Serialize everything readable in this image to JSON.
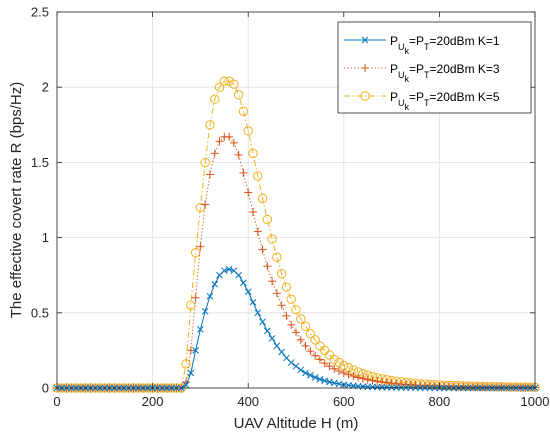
{
  "chart_data": {
    "type": "line",
    "xlabel": "UAV Altitude H (m)",
    "ylabel": "The effective covert rate R (bps/Hz)",
    "xlim": [
      0,
      1000
    ],
    "ylim": [
      0,
      2.5
    ],
    "xticks": [
      0,
      200,
      400,
      600,
      800,
      1000
    ],
    "yticks": [
      0,
      0.5,
      1,
      1.5,
      2,
      2.5
    ],
    "xtick_labels": [
      "0",
      "200",
      "400",
      "600",
      "800",
      "1000"
    ],
    "ytick_labels": [
      "0",
      "0.5",
      "1",
      "1.5",
      "2",
      "2.5"
    ],
    "grid": true,
    "legend_position": "top-right",
    "legend_entries": [
      {
        "p": "P",
        "u": "U",
        "k": "k",
        "eq": "=P",
        "t": "T",
        "rest": "=20dBm K=1"
      },
      {
        "p": "P",
        "u": "U",
        "k": "k",
        "eq": "=P",
        "t": "T",
        "rest": "=20dBm K=3"
      },
      {
        "p": "P",
        "u": "U",
        "k": "k",
        "eq": "=P",
        "t": "T",
        "rest": "=20dBm K=5"
      }
    ],
    "x": [
      0,
      10,
      20,
      30,
      40,
      50,
      60,
      70,
      80,
      90,
      100,
      110,
      120,
      130,
      140,
      150,
      160,
      170,
      180,
      190,
      200,
      210,
      220,
      230,
      240,
      250,
      260,
      270,
      280,
      290,
      300,
      310,
      320,
      330,
      340,
      350,
      360,
      370,
      380,
      390,
      400,
      410,
      420,
      430,
      440,
      450,
      460,
      470,
      480,
      490,
      500,
      510,
      520,
      530,
      540,
      550,
      560,
      570,
      580,
      590,
      600,
      610,
      620,
      630,
      640,
      650,
      660,
      670,
      680,
      690,
      700,
      710,
      720,
      730,
      740,
      750,
      760,
      770,
      780,
      790,
      800,
      810,
      820,
      830,
      840,
      850,
      860,
      870,
      880,
      890,
      900,
      910,
      920,
      930,
      940,
      950,
      960,
      970,
      980,
      990,
      1000
    ],
    "series": [
      {
        "marker": "x",
        "color": "#0072bd",
        "dash": "solid",
        "values": [
          0,
          0,
          0,
          0,
          0,
          0,
          0,
          0,
          0,
          0,
          0,
          0,
          0,
          0,
          0,
          0,
          0,
          0,
          0,
          0,
          0,
          0,
          0,
          0,
          0,
          0,
          0,
          0.02,
          0.1,
          0.25,
          0.39,
          0.51,
          0.61,
          0.69,
          0.75,
          0.78,
          0.79,
          0.78,
          0.75,
          0.7,
          0.64,
          0.57,
          0.5,
          0.44,
          0.38,
          0.33,
          0.28,
          0.24,
          0.2,
          0.17,
          0.145,
          0.12,
          0.1,
          0.085,
          0.07,
          0.058,
          0.048,
          0.04,
          0.033,
          0.027,
          0.022,
          0.018,
          0.015,
          0.012,
          0.01,
          0.008,
          0.007,
          0.006,
          0.005,
          0.004,
          0.003,
          0.003,
          0.002,
          0.002,
          0.002,
          0.001,
          0.001,
          0.001,
          0.001,
          0.001,
          0,
          0,
          0,
          0,
          0,
          0,
          0,
          0,
          0,
          0,
          0,
          0,
          0,
          0,
          0,
          0,
          0,
          0,
          0,
          0,
          0
        ]
      },
      {
        "marker": "+",
        "color": "#d95319",
        "dash": "dotted",
        "values": [
          0,
          0,
          0,
          0,
          0,
          0,
          0,
          0,
          0,
          0,
          0,
          0,
          0,
          0,
          0,
          0,
          0,
          0,
          0,
          0,
          0,
          0,
          0,
          0,
          0,
          0,
          0,
          0.04,
          0.25,
          0.6,
          0.94,
          1.22,
          1.42,
          1.56,
          1.64,
          1.67,
          1.67,
          1.63,
          1.55,
          1.43,
          1.3,
          1.17,
          1.04,
          0.92,
          0.81,
          0.71,
          0.63,
          0.55,
          0.48,
          0.42,
          0.37,
          0.32,
          0.28,
          0.245,
          0.215,
          0.19,
          0.165,
          0.145,
          0.128,
          0.113,
          0.1,
          0.089,
          0.079,
          0.07,
          0.062,
          0.055,
          0.049,
          0.044,
          0.04,
          0.036,
          0.032,
          0.029,
          0.026,
          0.024,
          0.022,
          0.02,
          0.018,
          0.016,
          0.015,
          0.014,
          0.013,
          0.012,
          0.011,
          0.01,
          0.009,
          0.009,
          0.008,
          0.007,
          0.007,
          0.006,
          0.006,
          0.005,
          0.005,
          0.005,
          0.004,
          0.004,
          0.004,
          0.003,
          0.003,
          0.003,
          0.003
        ]
      },
      {
        "marker": "o",
        "color": "#edb120",
        "dash": "dashdot",
        "values": [
          0,
          0,
          0,
          0,
          0,
          0,
          0,
          0,
          0,
          0,
          0,
          0,
          0,
          0,
          0,
          0,
          0,
          0,
          0,
          0,
          0,
          0,
          0,
          0,
          0,
          0,
          0,
          0.16,
          0.55,
          0.9,
          1.2,
          1.5,
          1.75,
          1.92,
          2.0,
          2.04,
          2.04,
          2.02,
          1.95,
          1.84,
          1.71,
          1.56,
          1.41,
          1.26,
          1.12,
          0.99,
          0.87,
          0.76,
          0.67,
          0.59,
          0.52,
          0.46,
          0.41,
          0.36,
          0.32,
          0.28,
          0.25,
          0.22,
          0.19,
          0.17,
          0.15,
          0.135,
          0.12,
          0.107,
          0.095,
          0.085,
          0.076,
          0.068,
          0.061,
          0.055,
          0.05,
          0.045,
          0.041,
          0.037,
          0.034,
          0.031,
          0.028,
          0.026,
          0.024,
          0.022,
          0.02,
          0.018,
          0.017,
          0.016,
          0.015,
          0.014,
          0.013,
          0.012,
          0.011,
          0.01,
          0.01,
          0.009,
          0.009,
          0.008,
          0.008,
          0.007,
          0.007,
          0.006,
          0.006,
          0.006,
          0.005
        ]
      }
    ]
  }
}
